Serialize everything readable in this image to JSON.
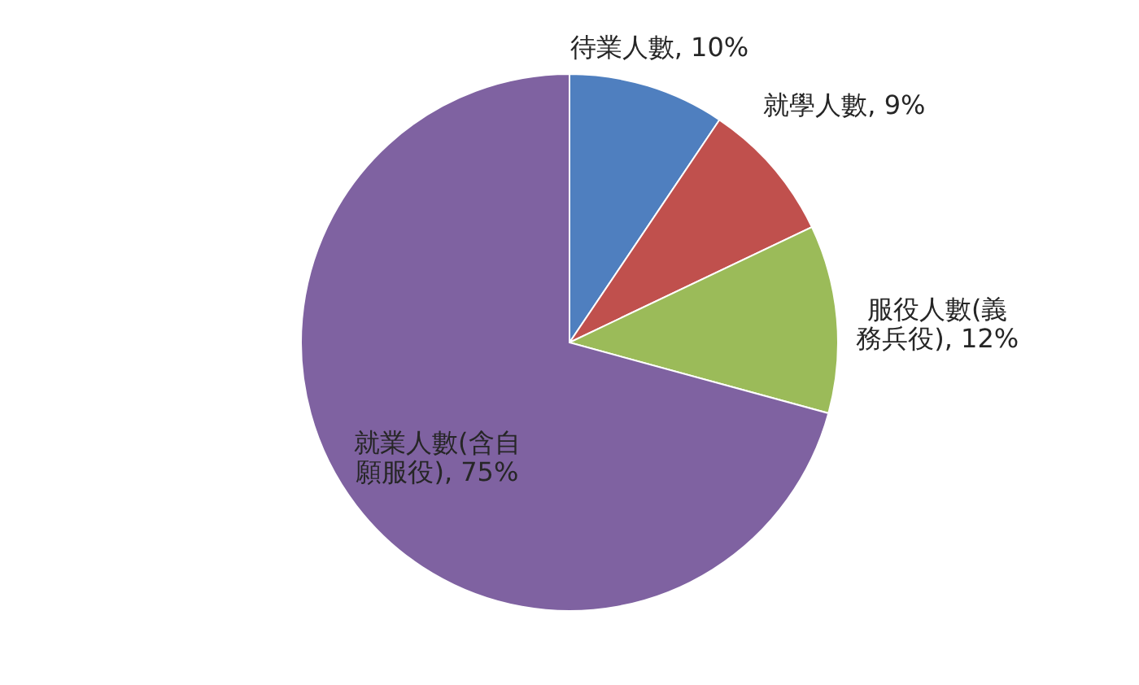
{
  "chart_data": {
    "type": "pie",
    "categories": [
      "待業人數",
      "就學人數",
      "服役人數(義務兵役)",
      "就業人數(含自願服役)"
    ],
    "values": [
      10,
      9,
      12,
      75
    ],
    "colors": [
      "#4f7fbf",
      "#c0504d",
      "#9bbb59",
      "#7f62a1"
    ],
    "value_labels": [
      "10%",
      "9%",
      "12%",
      "75%"
    ]
  }
}
